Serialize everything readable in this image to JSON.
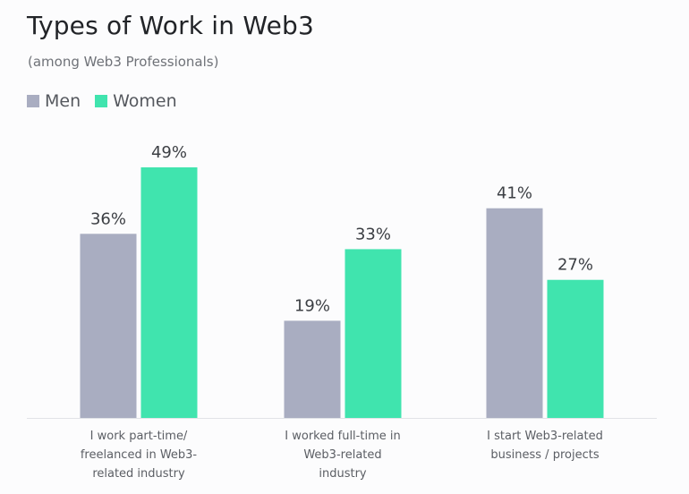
{
  "chart_data": {
    "type": "bar",
    "title": "Types of Work in Web3",
    "subtitle": "(among Web3 Professionals)",
    "categories": [
      [
        "I work part-time/",
        "freelanced in Web3-",
        "related industry"
      ],
      [
        "I worked full-time in",
        "Web3-related",
        "industry"
      ],
      [
        "I start Web3-related",
        "business / projects"
      ]
    ],
    "series": [
      {
        "name": "Men",
        "color": "#a9adc1",
        "values": [
          36,
          19,
          41
        ],
        "labels": [
          "36%",
          "19%",
          "41%"
        ]
      },
      {
        "name": "Women",
        "color": "#40e4ae",
        "values": [
          49,
          33,
          27
        ],
        "labels": [
          "49%",
          "33%",
          "27%"
        ]
      }
    ],
    "ylim": [
      0,
      49
    ],
    "grid": false,
    "legend_position": "top-left"
  }
}
